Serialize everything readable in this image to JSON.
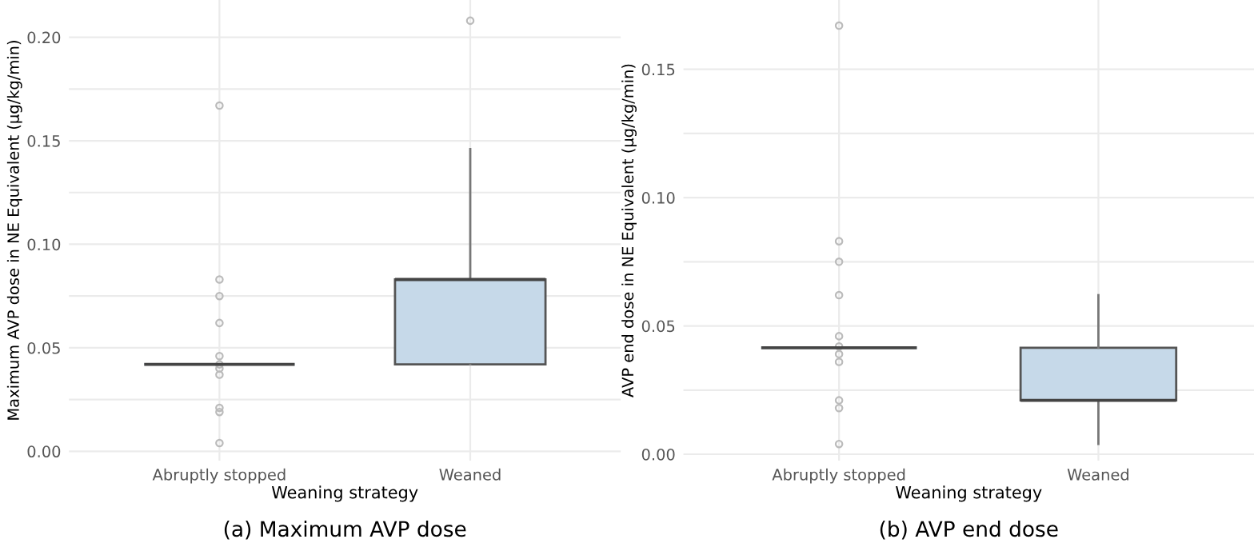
{
  "chart_data": [
    {
      "type": "box",
      "title": "(a) Maximum AVP dose",
      "xlabel": "Weaning strategy",
      "ylabel": "Maximum AVP dose in NE Equivalent (μg/kg/min)",
      "categories": [
        "Abruptly stopped",
        "Weaned"
      ],
      "color": "#c6d9e9",
      "boxes": [
        {
          "low": 0.042,
          "q1": 0.042,
          "median": 0.042,
          "q3": 0.042,
          "high": 0.042,
          "outliers": [
            0.167,
            0.083,
            0.075,
            0.062,
            0.046,
            0.042,
            0.04,
            0.037,
            0.021,
            0.019,
            0.004
          ]
        },
        {
          "low": 0.042,
          "q1": 0.042,
          "median": 0.083,
          "q3": 0.083,
          "high": 0.146,
          "outliers": [
            0.208
          ]
        }
      ],
      "ylim": [
        -0.0045,
        0.218
      ],
      "yticks": [
        {
          "value": 0,
          "label": "0.00"
        },
        {
          "value": 0.025,
          "label": null
        },
        {
          "value": 0.05,
          "label": "0.05"
        },
        {
          "value": 0.075,
          "label": null
        },
        {
          "value": 0.1,
          "label": "0.10"
        },
        {
          "value": 0.125,
          "label": null
        },
        {
          "value": 0.15,
          "label": "0.15"
        },
        {
          "value": 0.175,
          "label": null
        },
        {
          "value": 0.2,
          "label": "0.20"
        }
      ],
      "grid": true
    },
    {
      "type": "box",
      "title": "(b) AVP end dose",
      "xlabel": "Weaning strategy",
      "ylabel": "AVP end dose in NE Equivalent (μg/kg/min)",
      "categories": [
        "Abruptly stopped",
        "Weaned"
      ],
      "color": "#c6d9e9",
      "boxes": [
        {
          "low": 0.0415,
          "q1": 0.0415,
          "median": 0.0415,
          "q3": 0.0415,
          "high": 0.0415,
          "outliers": [
            0.167,
            0.083,
            0.075,
            0.062,
            0.046,
            0.042,
            0.039,
            0.036,
            0.021,
            0.018,
            0.004
          ]
        },
        {
          "low": 0.004,
          "q1": 0.021,
          "median": 0.021,
          "q3": 0.0415,
          "high": 0.062
        }
      ],
      "ylim": [
        -0.0025,
        0.177
      ],
      "yticks": [
        {
          "value": 0,
          "label": "0.00"
        },
        {
          "value": 0.025,
          "label": null
        },
        {
          "value": 0.05,
          "label": "0.05"
        },
        {
          "value": 0.075,
          "label": null
        },
        {
          "value": 0.1,
          "label": "0.10"
        },
        {
          "value": 0.125,
          "label": null
        },
        {
          "value": 0.15,
          "label": "0.15"
        }
      ],
      "grid": true
    }
  ]
}
